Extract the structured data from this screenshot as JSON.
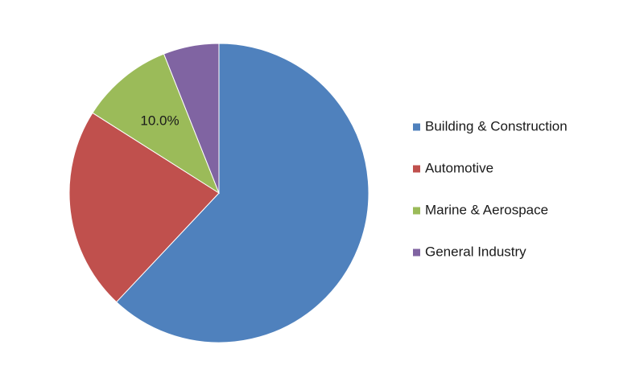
{
  "chart_data": {
    "type": "pie",
    "title": "",
    "categories": [
      "Building & Construction",
      "Automotive",
      "Marine & Aerospace",
      "General Industry"
    ],
    "values": [
      62,
      22,
      10,
      6
    ],
    "colors": [
      "#4F81BD",
      "#C0504D",
      "#9BBB59",
      "#8064A2"
    ],
    "data_labels": [
      "",
      "",
      "10.0%",
      ""
    ],
    "legend": {
      "position": "right",
      "entries": [
        "Building & Construction",
        "Automotive",
        "Marine & Aerospace",
        "General Industry"
      ]
    },
    "start_angle_deg": 0,
    "direction": "clockwise"
  }
}
